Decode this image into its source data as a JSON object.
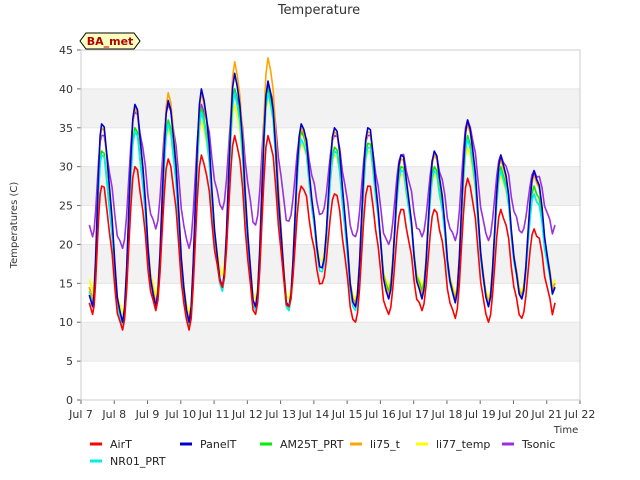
{
  "chart_data": {
    "type": "line",
    "title": "Temperature",
    "xlabel": "Time",
    "ylabel": "Temperatures (C)",
    "badge": "BA_met",
    "ylim": [
      0,
      45
    ],
    "yticks": [
      0,
      5,
      10,
      15,
      20,
      25,
      30,
      35,
      40,
      45
    ],
    "xlim": [
      7.0,
      22.0
    ],
    "xticks": [
      {
        "value": 7,
        "label": "Jul 7"
      },
      {
        "value": 8,
        "label": "Jul 8"
      },
      {
        "value": 9,
        "label": "Jul 9"
      },
      {
        "value": 10,
        "label": "Jul 10"
      },
      {
        "value": 11,
        "label": "Jul 11"
      },
      {
        "value": 12,
        "label": "Jul 12"
      },
      {
        "value": 13,
        "label": "Jul 13"
      },
      {
        "value": 14,
        "label": "Jul 14"
      },
      {
        "value": 15,
        "label": "Jul 15"
      },
      {
        "value": 16,
        "label": "Jul 16"
      },
      {
        "value": 17,
        "label": "Jul 17"
      },
      {
        "value": 18,
        "label": "Jul 18"
      },
      {
        "value": 19,
        "label": "Jul 19"
      },
      {
        "value": 20,
        "label": "Jul 20"
      },
      {
        "value": 21,
        "label": "Jul 21"
      },
      {
        "value": 22,
        "label": "Jul 22"
      }
    ],
    "grid": "horizontal bands",
    "legend_position": "bottom",
    "x_start": 7.25,
    "x_end": 21.25,
    "daily_extremes": [
      {
        "name": "AirT",
        "color": "#ff0000",
        "peaks": [
          27.5,
          30,
          31,
          31.5,
          34,
          34,
          27.5,
          26.5,
          27.5,
          24.5,
          24.5,
          28.5,
          24.5,
          22
        ],
        "troughs": [
          11,
          9,
          11.5,
          9,
          14.5,
          11,
          12,
          15,
          10,
          11,
          11.5,
          10.5,
          10,
          10.5,
          11,
          12.5
        ]
      },
      {
        "name": "PanelT",
        "color": "#0000cc",
        "peaks": [
          35.5,
          38,
          38.5,
          40,
          42,
          41,
          35.5,
          35,
          35,
          31.5,
          32,
          36,
          31.5,
          29.5
        ],
        "troughs": [
          12,
          10,
          12,
          10,
          14.5,
          12,
          12,
          17,
          12,
          13,
          13,
          12.5,
          12,
          13,
          13.5,
          14.5
        ]
      },
      {
        "name": "AM25T_PRT",
        "color": "#00ee00",
        "peaks": [
          32,
          35,
          36,
          37.5,
          40,
          40,
          34.5,
          32.5,
          33,
          30,
          30,
          34,
          30,
          27.5
        ],
        "troughs": [
          13,
          9.5,
          12.5,
          10,
          14,
          12,
          11.5,
          17,
          12,
          14,
          14,
          13,
          12.5,
          13.5,
          14,
          15
        ]
      },
      {
        "name": "li75_t",
        "color": "#ffa500",
        "peaks": [
          35,
          37.5,
          39.5,
          39.5,
          43.5,
          44,
          35,
          34.5,
          34.5,
          31,
          31.5,
          35.5,
          31,
          29
        ],
        "troughs": [
          13,
          10,
          12.5,
          10,
          14.5,
          12,
          12,
          17,
          12.5,
          13.5,
          13.5,
          13,
          12.5,
          13.5,
          14,
          15
        ]
      },
      {
        "name": "li77_temp",
        "color": "#ffff00",
        "peaks": [
          31.5,
          34.5,
          35,
          36,
          38,
          39,
          33,
          31.5,
          32,
          29,
          29,
          32.5,
          29,
          26.5
        ],
        "troughs": [
          14,
          11,
          13.5,
          11,
          16,
          13,
          13,
          18,
          13,
          14.5,
          14.5,
          13.5,
          13,
          14,
          14.5,
          15.5
        ]
      },
      {
        "name": "Tsonic",
        "color": "#9a30e0",
        "peaks": [
          34,
          37,
          38,
          38,
          40,
          40.5,
          34.5,
          34,
          34,
          31.5,
          31.5,
          36,
          31.5,
          29.5
        ],
        "troughs": [
          21,
          19.5,
          22,
          19.5,
          24.5,
          22.5,
          23,
          24,
          21,
          20,
          21,
          20.5,
          20.5,
          21.5,
          21.5,
          22.5
        ]
      },
      {
        "name": "NR01_PRT",
        "color": "#00f0f0",
        "peaks": [
          31.5,
          34.5,
          35.5,
          37,
          39.5,
          39.5,
          33.5,
          32,
          32.5,
          29.5,
          29.5,
          33.5,
          29.5,
          26.5
        ],
        "troughs": [
          12.5,
          9.5,
          12,
          9.5,
          14,
          11.5,
          11.5,
          16.5,
          11.5,
          13.5,
          13.5,
          12.5,
          12,
          13,
          13.5,
          14.5
        ]
      }
    ],
    "series": [
      {
        "name": "AirT",
        "color": "#ff0000"
      },
      {
        "name": "PanelT",
        "color": "#0000cc"
      },
      {
        "name": "AM25T_PRT",
        "color": "#00ee00"
      },
      {
        "name": "li75_t",
        "color": "#ffa500"
      },
      {
        "name": "li77_temp",
        "color": "#ffff00"
      },
      {
        "name": "Tsonic",
        "color": "#9a30e0"
      },
      {
        "name": "NR01_PRT",
        "color": "#00f0f0"
      }
    ]
  }
}
